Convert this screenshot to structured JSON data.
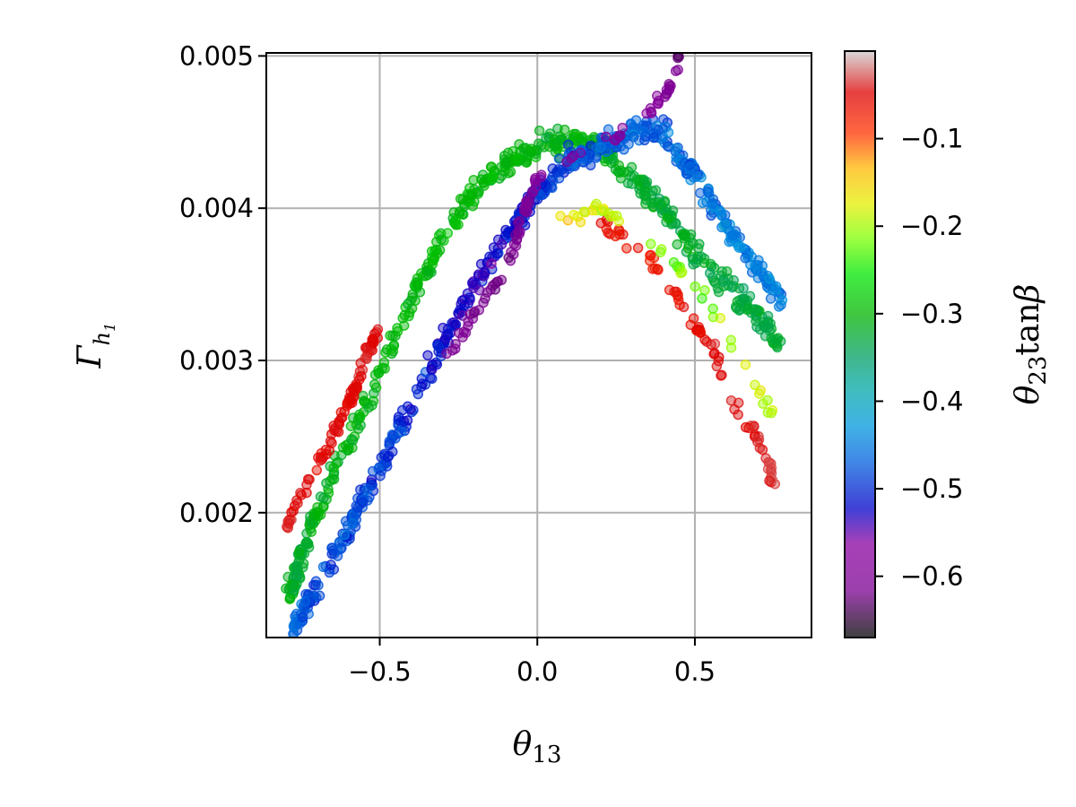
{
  "chart_data": {
    "type": "scatter",
    "title": "",
    "xlabel": "θ13",
    "ylabel": "Γh1",
    "xlim": [
      -0.86,
      0.87
    ],
    "ylim": [
      0.00118,
      0.00502
    ],
    "xticks": [
      {
        "value": -0.5,
        "label": "−0.5"
      },
      {
        "value": 0.0,
        "label": "0.0"
      },
      {
        "value": 0.5,
        "label": "0.5"
      }
    ],
    "yticks": [
      {
        "value": 0.002,
        "label": "0.002"
      },
      {
        "value": 0.003,
        "label": "0.003"
      },
      {
        "value": 0.004,
        "label": "0.004"
      },
      {
        "value": 0.005,
        "label": "0.005"
      }
    ],
    "grid": true,
    "colorbar": {
      "label": "θ23tanβ",
      "colormap": "nipy_spectral",
      "range": [
        -0.67,
        0.0
      ],
      "ticks": [
        {
          "value": -0.1,
          "label": "−0.1"
        },
        {
          "value": -0.2,
          "label": "−0.2"
        },
        {
          "value": -0.3,
          "label": "−0.3"
        },
        {
          "value": -0.4,
          "label": "−0.4"
        },
        {
          "value": -0.5,
          "label": "−0.5"
        },
        {
          "value": -0.6,
          "label": "−0.6"
        }
      ]
    },
    "bands": [
      {
        "desc": "green band left",
        "pts": [
          [
            -0.79,
            0.00145,
            -0.32
          ],
          [
            -0.75,
            0.0017,
            -0.32
          ],
          [
            -0.7,
            0.002,
            -0.31
          ],
          [
            -0.6,
            0.00245,
            -0.31
          ],
          [
            -0.5,
            0.0029,
            -0.3
          ],
          [
            -0.4,
            0.0034,
            -0.3
          ],
          [
            -0.3,
            0.0038,
            -0.3
          ],
          [
            -0.2,
            0.0041,
            -0.3
          ],
          [
            -0.1,
            0.0043,
            -0.3
          ],
          [
            0.0,
            0.0044,
            -0.31
          ],
          [
            0.1,
            0.00445,
            -0.31
          ],
          [
            0.2,
            0.0044,
            -0.31
          ],
          [
            0.3,
            0.0042,
            -0.32
          ],
          [
            0.4,
            0.004,
            -0.32
          ],
          [
            0.5,
            0.0037,
            -0.32
          ],
          [
            0.6,
            0.0035,
            -0.33
          ],
          [
            0.7,
            0.0033,
            -0.33
          ],
          [
            0.77,
            0.0031,
            -0.33
          ]
        ],
        "spread": 0.00018,
        "color_jitter": 0.04,
        "n": 520
      },
      {
        "desc": "blue band",
        "pts": [
          [
            -0.78,
            0.0012,
            -0.47
          ],
          [
            -0.7,
            0.0015,
            -0.48
          ],
          [
            -0.6,
            0.0019,
            -0.48
          ],
          [
            -0.5,
            0.0023,
            -0.49
          ],
          [
            -0.4,
            0.0027,
            -0.5
          ],
          [
            -0.3,
            0.0031,
            -0.52
          ],
          [
            -0.2,
            0.0035,
            -0.53
          ],
          [
            -0.1,
            0.0038,
            -0.52
          ],
          [
            0.0,
            0.0041,
            -0.5
          ],
          [
            0.1,
            0.0043,
            -0.48
          ],
          [
            0.2,
            0.0044,
            -0.47
          ],
          [
            0.3,
            0.0045,
            -0.47
          ],
          [
            0.4,
            0.0045,
            -0.47
          ],
          [
            0.5,
            0.0042,
            -0.46
          ],
          [
            0.6,
            0.0039,
            -0.45
          ],
          [
            0.7,
            0.0036,
            -0.45
          ],
          [
            0.78,
            0.0034,
            -0.45
          ]
        ],
        "spread": 0.00016,
        "color_jitter": 0.06,
        "n": 560
      },
      {
        "desc": "purple streak",
        "pts": [
          [
            -0.3,
            0.003,
            -0.6
          ],
          [
            -0.2,
            0.0033,
            -0.61
          ],
          [
            -0.1,
            0.0036,
            -0.62
          ],
          [
            -0.05,
            0.0039,
            -0.6
          ],
          [
            0.0,
            0.0042,
            -0.58
          ],
          [
            0.35,
            0.0046,
            -0.57
          ],
          [
            0.42,
            0.0048,
            -0.6
          ],
          [
            0.45,
            0.005,
            -0.62
          ]
        ],
        "spread": 8e-05,
        "color_jitter": 0.04,
        "n": 90
      },
      {
        "desc": "red edge left",
        "pts": [
          [
            -0.8,
            0.0019,
            -0.04
          ],
          [
            -0.7,
            0.0023,
            -0.05
          ],
          [
            -0.6,
            0.0027,
            -0.05
          ],
          [
            -0.55,
            0.003,
            -0.04
          ],
          [
            -0.5,
            0.0032,
            -0.05
          ]
        ],
        "spread": 7e-05,
        "color_jitter": 0.02,
        "n": 90
      },
      {
        "desc": "red arc right",
        "pts": [
          [
            0.2,
            0.0039,
            -0.06
          ],
          [
            0.35,
            0.0037,
            -0.07
          ],
          [
            0.45,
            0.0034,
            -0.06
          ],
          [
            0.55,
            0.0031,
            -0.05
          ],
          [
            0.6,
            0.0028,
            -0.04
          ],
          [
            0.7,
            0.0025,
            -0.04
          ],
          [
            0.75,
            0.0022,
            -0.03
          ]
        ],
        "spread": 0.0001,
        "color_jitter": 0.03,
        "n": 80
      },
      {
        "desc": "yellow-orange arc",
        "pts": [
          [
            0.05,
            0.0039,
            -0.15
          ],
          [
            0.2,
            0.004,
            -0.18
          ],
          [
            0.3,
            0.0039,
            -0.2
          ],
          [
            0.5,
            0.0035,
            -0.22
          ],
          [
            0.6,
            0.0032,
            -0.2
          ],
          [
            0.7,
            0.0028,
            -0.18
          ],
          [
            0.75,
            0.0026,
            -0.2
          ]
        ],
        "spread": 8e-05,
        "color_jitter": 0.05,
        "n": 45
      }
    ]
  }
}
